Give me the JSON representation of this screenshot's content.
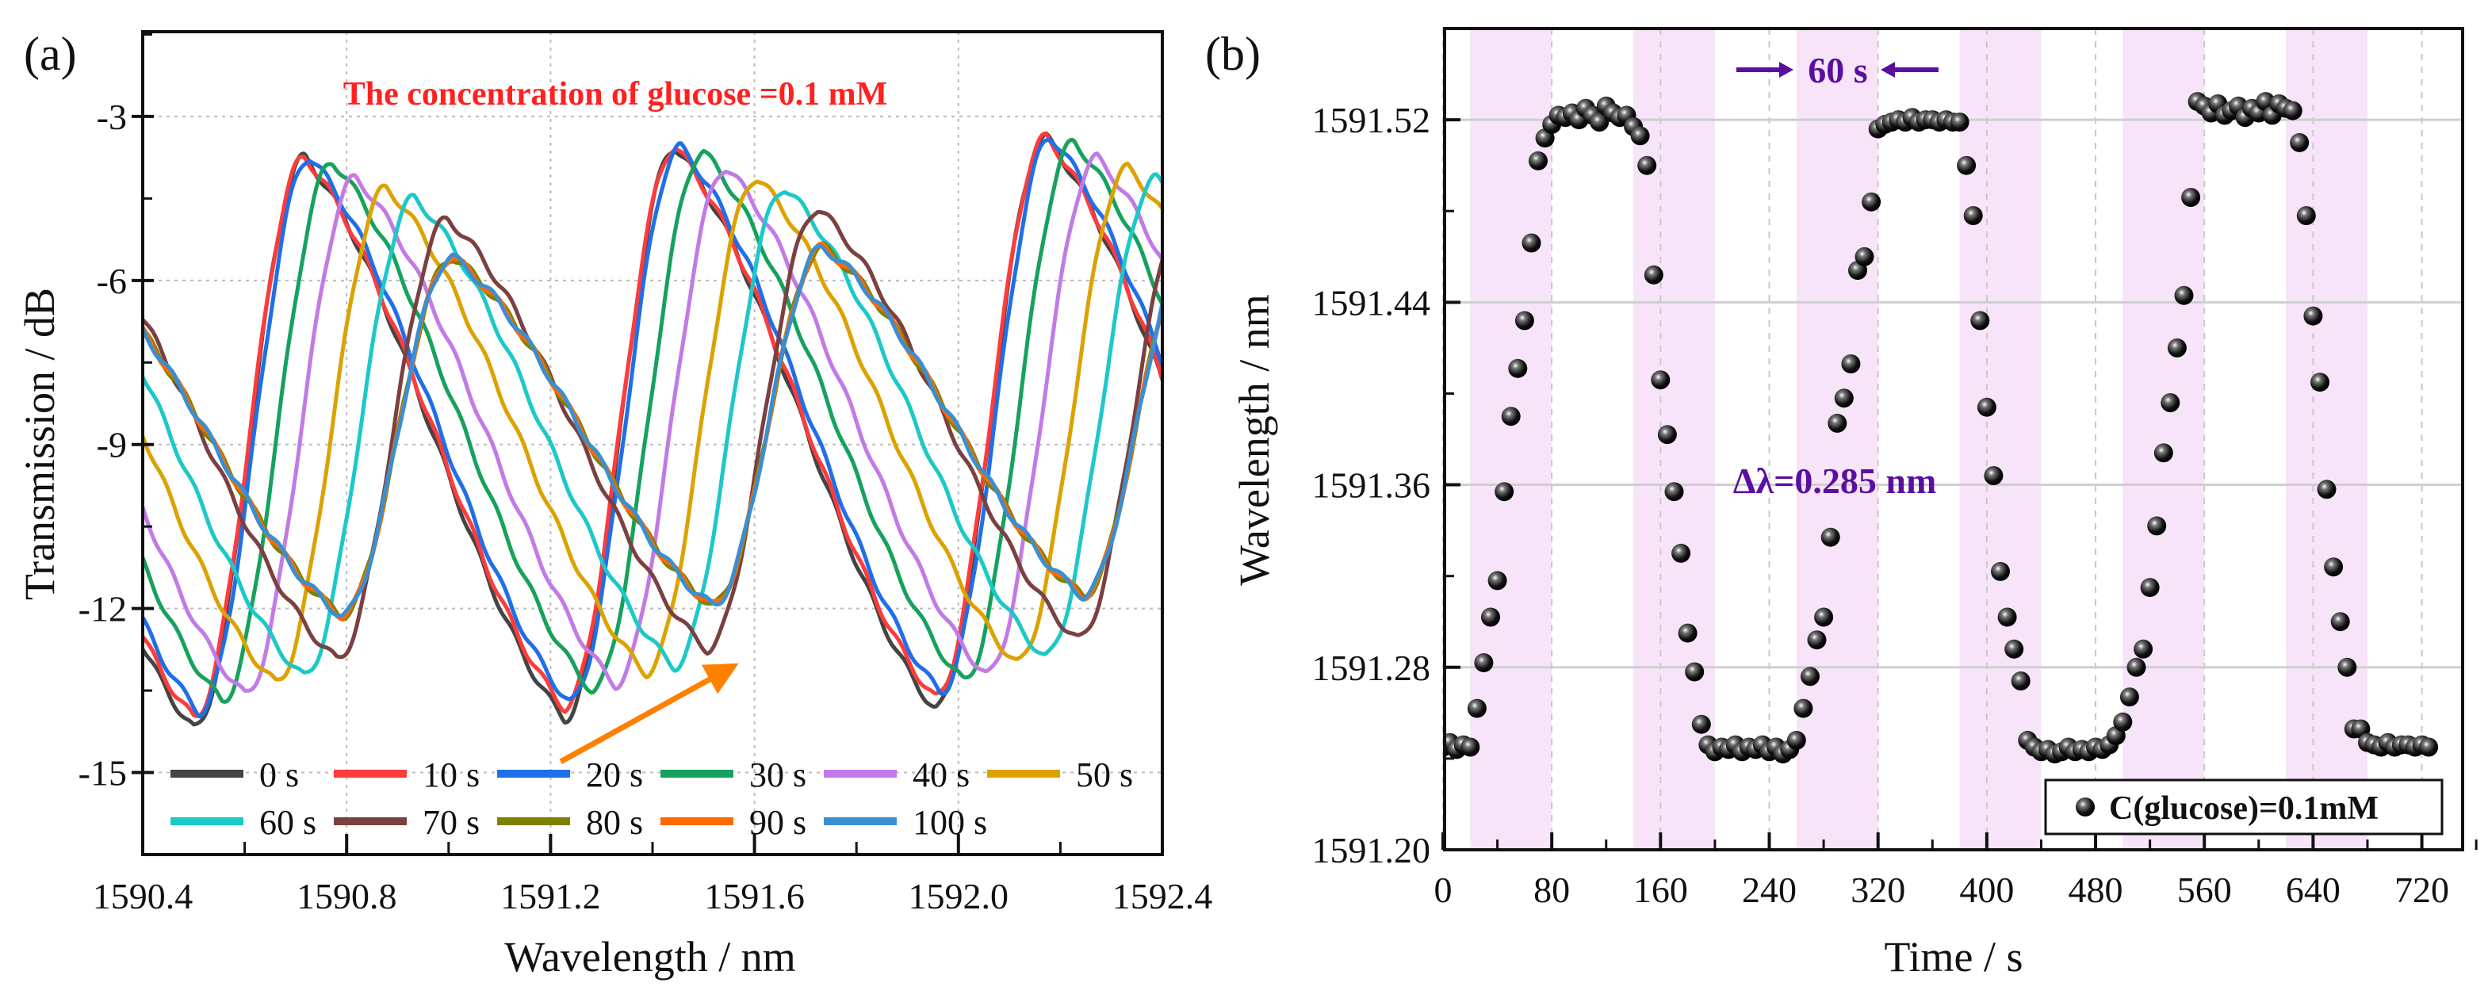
{
  "chart_data": [
    {
      "type": "line",
      "panel_label": "(a)",
      "title": "The concentration of glucose =0.1 mM",
      "xlabel": "Wavelength / nm",
      "ylabel": "Transmission / dB",
      "xlim": [
        1590.4,
        1592.4
      ],
      "ylim": [
        -16.5,
        -1.45
      ],
      "xticks": [
        1590.4,
        1590.8,
        1591.2,
        1591.6,
        1592.0,
        1592.4
      ],
      "xtick_labels": [
        "1590.4",
        "1590.8",
        "1591.2",
        "1591.6",
        "1592.0",
        "1592.4"
      ],
      "yticks": [
        -3,
        -6,
        -9,
        -12,
        -15
      ],
      "ytick_labels": [
        "-3",
        "-6",
        "-9",
        "-12",
        "-15"
      ],
      "grid": true,
      "legend_placement": "bottom",
      "period_nm": 0.727,
      "first_dip_nm": 1590.5,
      "series": [
        {
          "name": "0 s",
          "color": "#444444",
          "shift_nm": 0.0,
          "max_db": -3.8,
          "min_db": -14.2
        },
        {
          "name": "10 s",
          "color": "#ff3b3b",
          "shift_nm": 0.0,
          "max_db": -3.8,
          "min_db": -14.0
        },
        {
          "name": "20 s",
          "color": "#1f6fe8",
          "shift_nm": 0.01,
          "max_db": -3.8,
          "min_db": -13.9
        },
        {
          "name": "30 s",
          "color": "#16a25c",
          "shift_nm": 0.055,
          "max_db": -3.9,
          "min_db": -13.7
        },
        {
          "name": "40 s",
          "color": "#c27ae6",
          "shift_nm": 0.1,
          "max_db": -4.2,
          "min_db": -13.6
        },
        {
          "name": "50 s",
          "color": "#dba200",
          "shift_nm": 0.16,
          "max_db": -4.4,
          "min_db": -13.4
        },
        {
          "name": "60 s",
          "color": "#1cc8c8",
          "shift_nm": 0.215,
          "max_db": -4.6,
          "min_db": -13.3
        },
        {
          "name": "70 s",
          "color": "#7b4040",
          "shift_nm": 0.28,
          "max_db": -5.0,
          "min_db": -13.0
        },
        {
          "name": "80 s",
          "color": "#808000",
          "shift_nm": 0.29,
          "max_db": -5.7,
          "min_db": -12.2
        },
        {
          "name": "90 s",
          "color": "#ff6a00",
          "shift_nm": 0.29,
          "max_db": -5.7,
          "min_db": -12.2
        },
        {
          "name": "100 s",
          "color": "#3a8fd0",
          "shift_nm": 0.29,
          "max_db": -5.7,
          "min_db": -12.2
        }
      ],
      "annotation_arrow": {
        "color": "#ff8000",
        "from": [
          1591.22,
          -14.8
        ],
        "to": [
          1591.55,
          -13.1
        ]
      }
    },
    {
      "type": "scatter",
      "panel_label": "(b)",
      "xlabel": "Time / s",
      "ylabel": "Wavelength / nm",
      "xlim": [
        0,
        750
      ],
      "ylim": [
        1591.2,
        1591.56
      ],
      "xticks": [
        0,
        80,
        160,
        240,
        320,
        400,
        480,
        560,
        640,
        720
      ],
      "xtick_labels": [
        "0",
        "80",
        "160",
        "240",
        "320",
        "400",
        "480",
        "560",
        "640",
        "720"
      ],
      "yticks": [
        1591.2,
        1591.28,
        1591.36,
        1591.44,
        1591.52
      ],
      "ytick_labels": [
        "1591.20",
        "1591.28",
        "1591.36",
        "1591.44",
        "1591.52"
      ],
      "grid": true,
      "legend_placement": "bottom-right",
      "legend_label": "C(glucose)=0.1mM",
      "shaded_bands_s": [
        [
          20,
          80
        ],
        [
          140,
          200
        ],
        [
          260,
          320
        ],
        [
          380,
          440
        ],
        [
          500,
          560
        ],
        [
          620,
          680
        ]
      ],
      "band_color": "#f7e4f9",
      "annotations": [
        {
          "text": "60 s",
          "color": "#5a0fa0"
        },
        {
          "text": "Δλ=0.285 nm",
          "color": "#5a0fa0"
        }
      ],
      "x_start": 0,
      "x_step": 5,
      "values": [
        1591.245,
        1591.247,
        1591.244,
        1591.246,
        1591.245,
        1591.262,
        1591.282,
        1591.302,
        1591.318,
        1591.357,
        1591.39,
        1591.411,
        1591.432,
        1591.466,
        1591.502,
        1591.512,
        1591.518,
        1591.522,
        1591.521,
        1591.523,
        1591.52,
        1591.525,
        1591.522,
        1591.519,
        1591.526,
        1591.523,
        1591.521,
        1591.522,
        1591.517,
        1591.513,
        1591.5,
        1591.452,
        1591.406,
        1591.382,
        1591.357,
        1591.33,
        1591.295,
        1591.278,
        1591.255,
        1591.246,
        1591.243,
        1591.245,
        1591.244,
        1591.246,
        1591.243,
        1591.245,
        1591.244,
        1591.246,
        1591.243,
        1591.245,
        1591.242,
        1591.244,
        1591.248,
        1591.262,
        1591.276,
        1591.292,
        1591.302,
        1591.337,
        1591.387,
        1591.398,
        1591.413,
        1591.454,
        1591.46,
        1591.484,
        1591.516,
        1591.518,
        1591.519,
        1591.52,
        1591.519,
        1591.521,
        1591.519,
        1591.52,
        1591.52,
        1591.519,
        1591.52,
        1591.519,
        1591.519,
        1591.5,
        1591.478,
        1591.432,
        1591.394,
        1591.364,
        1591.322,
        1591.302,
        1591.288,
        1591.274,
        1591.248,
        1591.245,
        1591.243,
        1591.244,
        1591.242,
        1591.243,
        1591.245,
        1591.243,
        1591.244,
        1591.243,
        1591.245,
        1591.244,
        1591.246,
        1591.25,
        1591.256,
        1591.267,
        1591.28,
        1591.288,
        1591.315,
        1591.342,
        1591.374,
        1591.396,
        1591.42,
        1591.443,
        1591.486,
        1591.528,
        1591.526,
        1591.523,
        1591.527,
        1591.522,
        1591.524,
        1591.526,
        1591.521,
        1591.525,
        1591.523,
        1591.528,
        1591.522,
        1591.527,
        1591.525,
        1591.524,
        1591.51,
        1591.478,
        1591.434,
        1591.405,
        1591.358,
        1591.324,
        1591.3,
        1591.28,
        1591.253,
        1591.253,
        1591.247,
        1591.246,
        1591.245,
        1591.247,
        1591.245,
        1591.246,
        1591.246,
        1591.245,
        1591.246,
        1591.245
      ]
    }
  ]
}
